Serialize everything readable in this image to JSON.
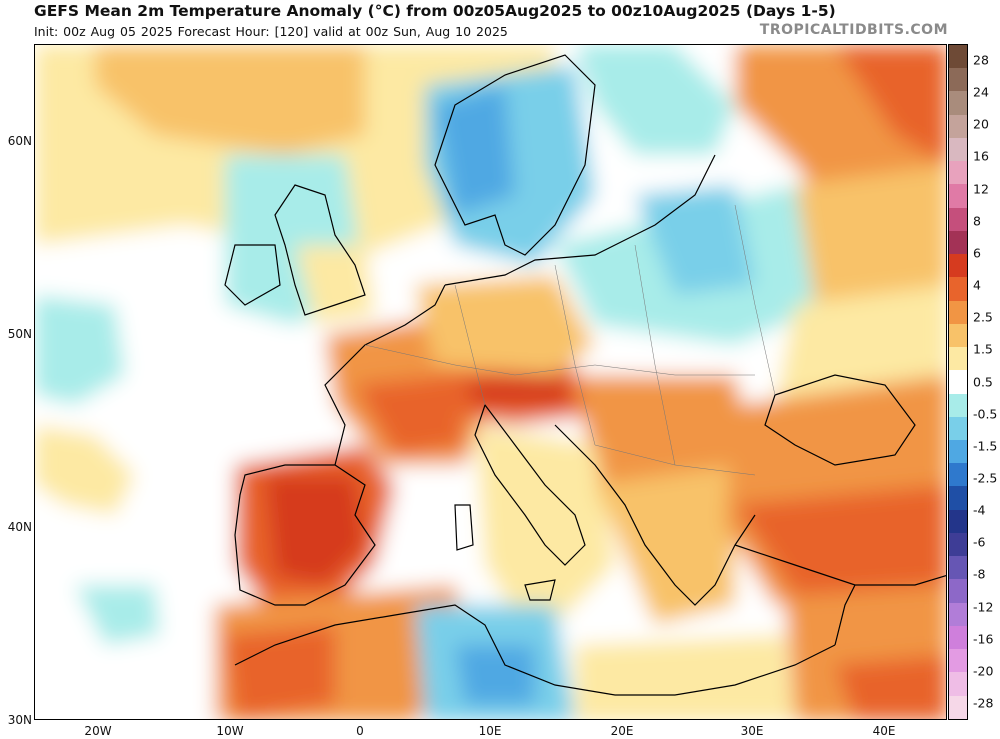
{
  "header": {
    "title": "GEFS Mean 2m Temperature Anomaly (°C) from 00z05Aug2025 to 00z10Aug2025 (Days 1-5)",
    "subtitle": "Init: 00z Aug 05 2025   Forecast Hour: [120]   valid at 00z Sun, Aug 10 2025",
    "credit": "TROPICALTIDBITS.COM"
  },
  "axes": {
    "latitudes": [
      "60N",
      "50N",
      "40N",
      "30N"
    ],
    "longitudes": [
      "20W",
      "10W",
      "0",
      "10E",
      "20E",
      "30E",
      "40E"
    ]
  },
  "colorbar": {
    "labels": [
      "28",
      "24",
      "20",
      "16",
      "12",
      "8",
      "6",
      "4",
      "2.5",
      "1.5",
      "0.5",
      "-0.5",
      "-1.5",
      "-2.5",
      "-4",
      "-6",
      "-8",
      "-12",
      "-16",
      "-20",
      "-28"
    ],
    "colors": [
      "#6e4a36",
      "#8c6a58",
      "#a98c7c",
      "#c4a39b",
      "#d9b8c0",
      "#e8a2bd",
      "#e07aa6",
      "#c54f7c",
      "#a33256",
      "#d63b1f",
      "#e8642c",
      "#f19544",
      "#f8c269",
      "#fde9a3",
      "#ffffff",
      "#a8ece9",
      "#79cfe9",
      "#4fa8e3",
      "#2f79cd",
      "#1f4fa6",
      "#23358a",
      "#3e3d96",
      "#6656b4",
      "#8d68c8",
      "#b17dd8",
      "#cf7fdc",
      "#e39be3",
      "#efbde6",
      "#f6d8e8"
    ]
  },
  "legend_colors": {
    "warm_strong": "#d63b1f",
    "warm": "#f19544",
    "warm_light": "#fde9a3",
    "neutral": "#ffffff",
    "cool_light": "#a8ece9",
    "cool": "#4fa8e3",
    "cool_strong": "#2f79cd"
  }
}
